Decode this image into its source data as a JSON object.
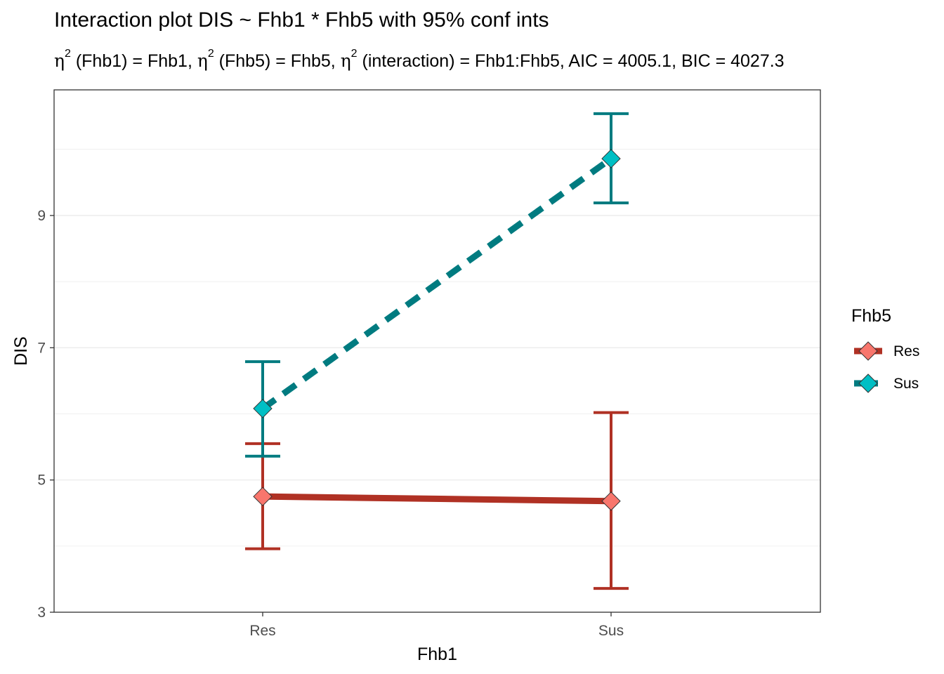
{
  "title": "Interaction plot  DIS ~ Fhb1 * Fhb5 with 95% conf ints",
  "subtitle": {
    "eta_symbol": "η",
    "superscript": "2",
    "part1": " (Fhb1) = Fhb1, ",
    "part2": " (Fhb5) = Fhb5, ",
    "part3": " (interaction) = Fhb1:Fhb5, AIC = 4005.1, BIC = 4027.3"
  },
  "chart_data": {
    "type": "line",
    "xlabel": "Fhb1",
    "ylabel": "DIS",
    "categories": [
      "Res",
      "Sus"
    ],
    "ylim": [
      3,
      10.9
    ],
    "yticks": [
      3,
      5,
      7,
      9
    ],
    "grid": true,
    "legend": {
      "title": "Fhb5",
      "placement": "right"
    },
    "series": [
      {
        "name": "Res",
        "values": [
          4.75,
          4.68
        ],
        "ci_low": [
          3.96,
          3.36
        ],
        "ci_high": [
          5.55,
          6.02
        ],
        "line_color": "#b03124",
        "point_color": "#f8766d",
        "line_style": "solid"
      },
      {
        "name": "Sus",
        "values": [
          6.08,
          9.86
        ],
        "ci_low": [
          5.36,
          9.19
        ],
        "ci_high": [
          6.79,
          10.54
        ],
        "line_color": "#007b80",
        "point_color": "#00bfc4",
        "line_style": "dashed"
      }
    ]
  }
}
